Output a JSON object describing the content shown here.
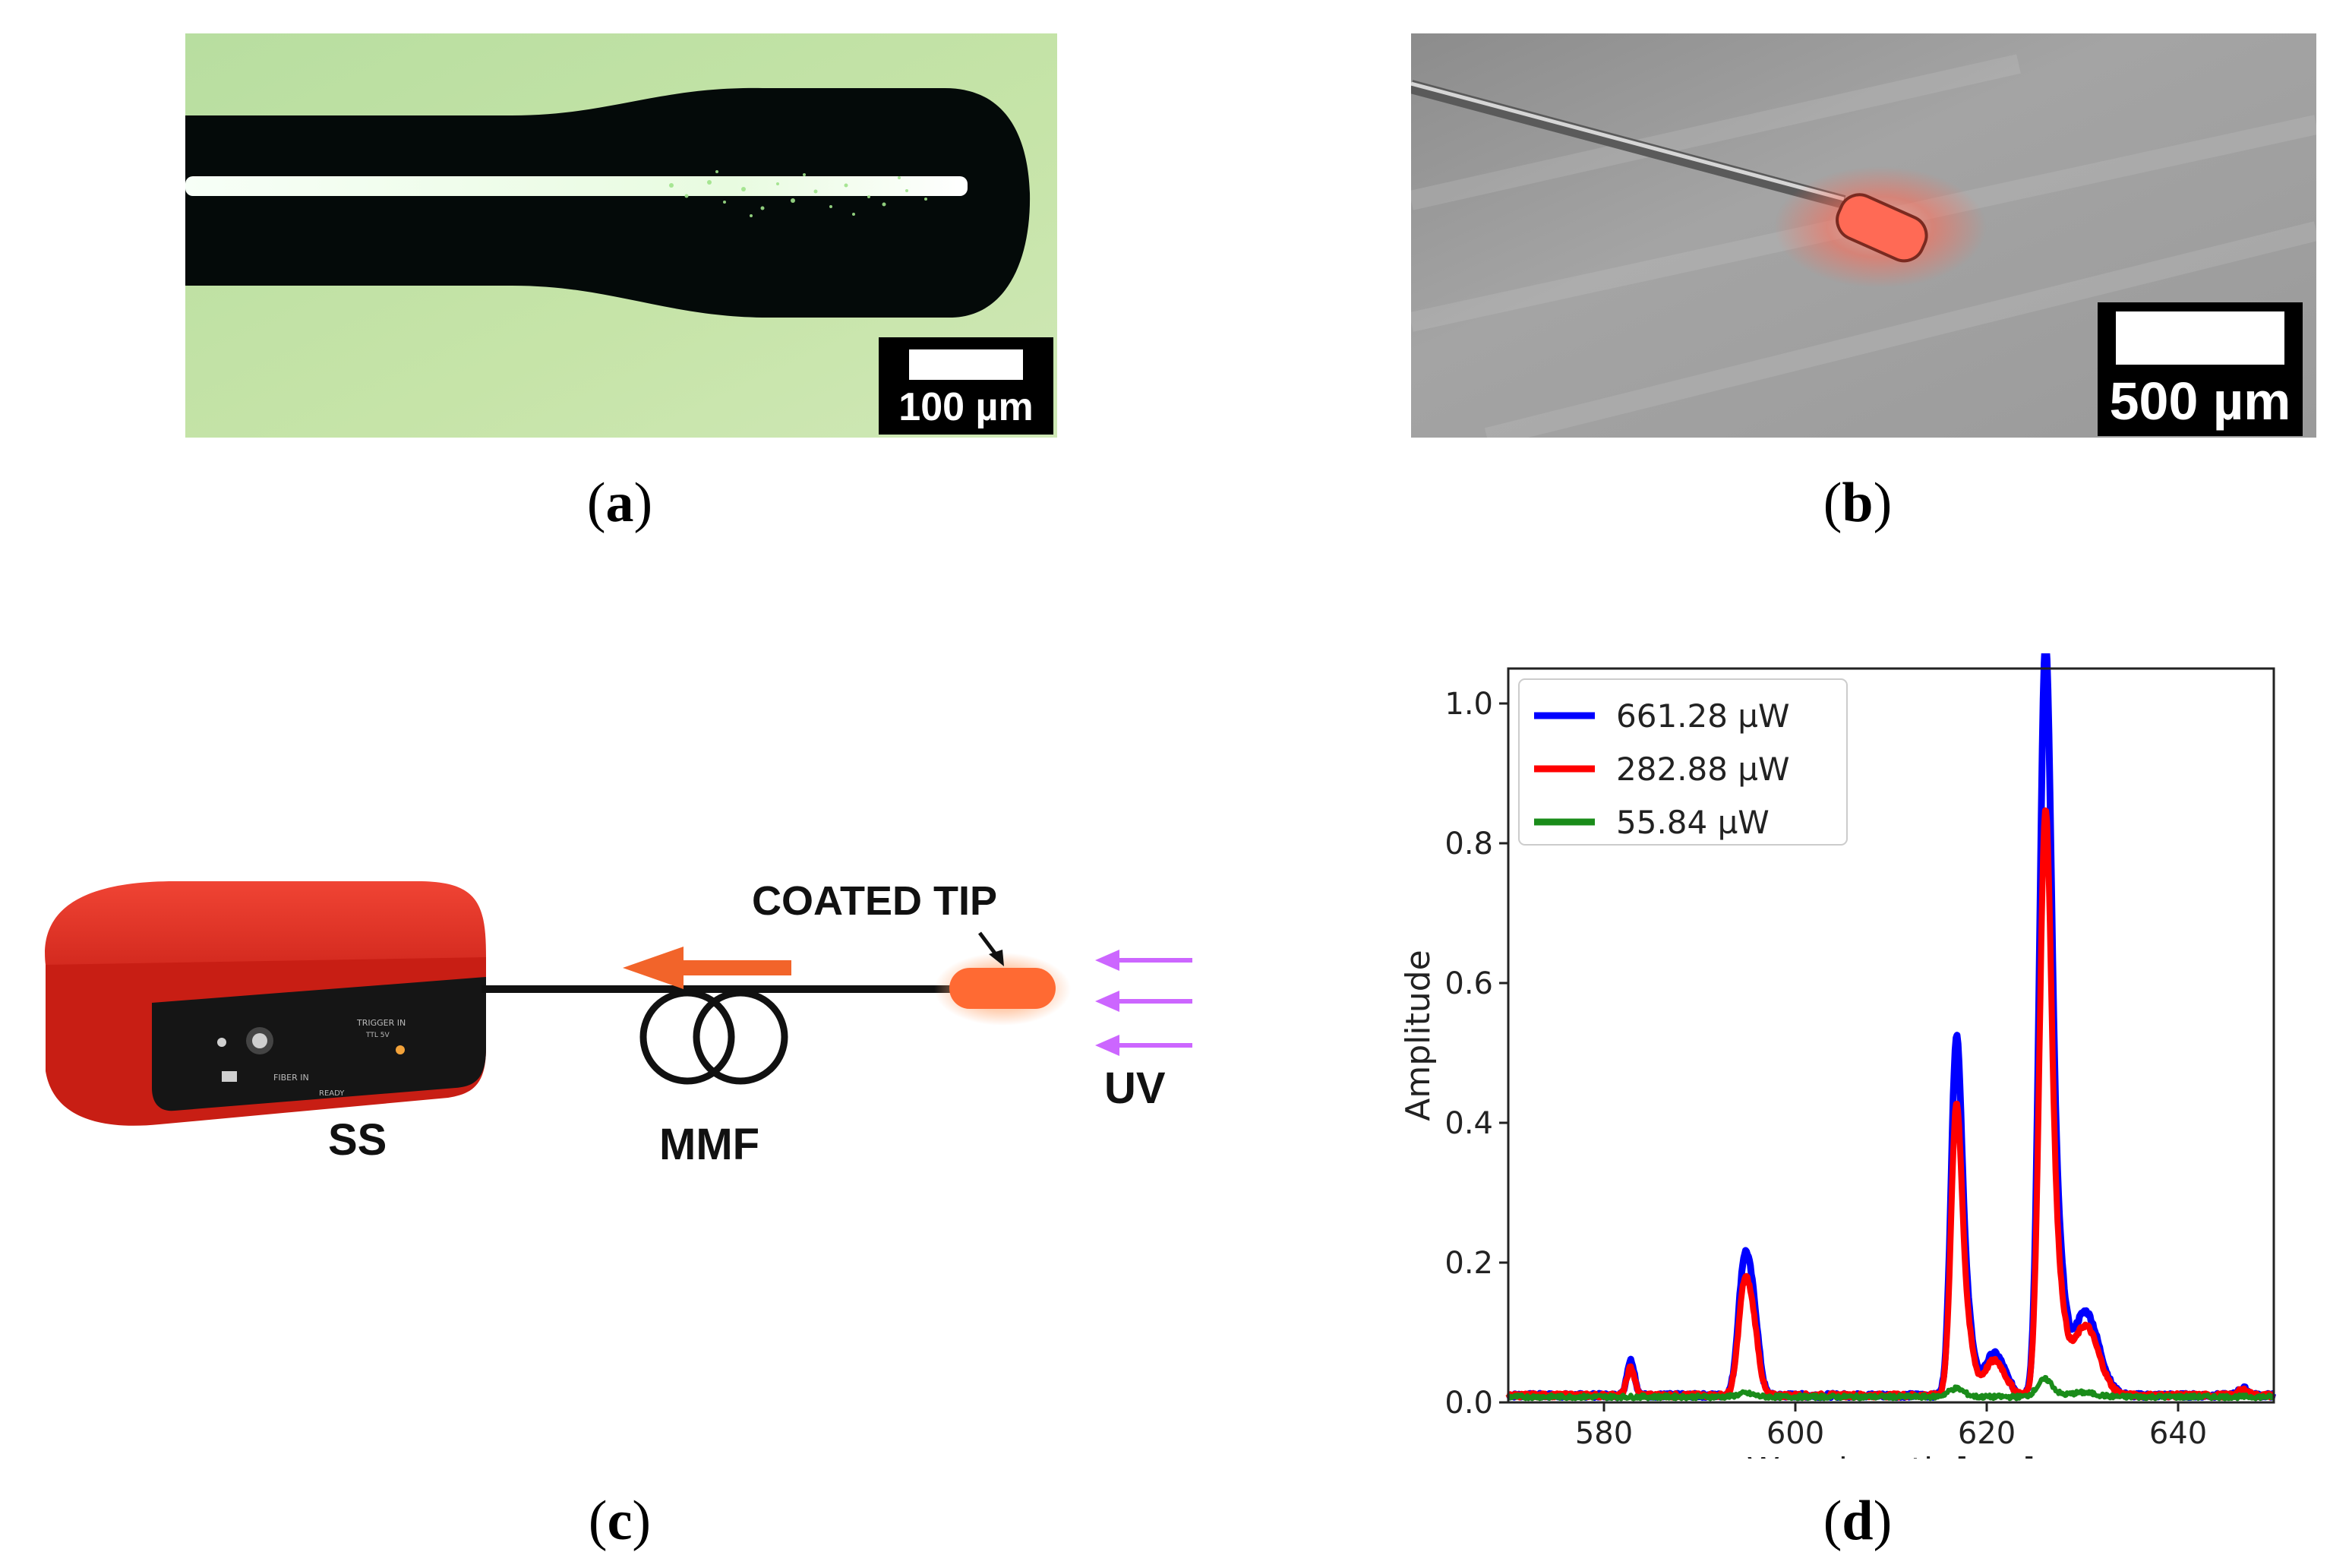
{
  "panels": {
    "a": {
      "caption_open": "(",
      "caption_letter": "a",
      "caption_close": ")",
      "scale_label": "100 µm",
      "colors": {
        "background": "#c5e3a6",
        "fiber": "#050b0a",
        "core": "#f4fff0"
      }
    },
    "b": {
      "caption_open": "(",
      "caption_letter": "b",
      "caption_close": ")",
      "scale_label": "500 µm",
      "colors": {
        "background": "#9a9a9a",
        "tip": "#ff6a55"
      }
    },
    "c": {
      "caption_open": "(",
      "caption_letter": "c",
      "caption_close": ")",
      "labels": {
        "spectrometer": "SS",
        "fiber": "MMF",
        "coated_tip": "COATED TIP",
        "uv": "UV",
        "port_fiber": "FIBER IN",
        "port_trigger": "TRIGGER IN",
        "port_ttl": "TTL 5V",
        "port_ready": "READY"
      },
      "colors": {
        "device": "#d9261c",
        "arrow": "#f2642a",
        "uv_arrows": "#cc66ff",
        "tip": "#ff6a33"
      }
    },
    "d": {
      "caption_open": "(",
      "caption_letter": "d",
      "caption_close": ")"
    }
  },
  "chart_data": {
    "type": "line",
    "title": "",
    "xlabel": "Wavelength [nm]",
    "ylabel": "Amplitude",
    "xlim": [
      570,
      650
    ],
    "ylim": [
      0.0,
      1.05
    ],
    "xticks": [
      580,
      600,
      620,
      640
    ],
    "yticks": [
      0.0,
      0.2,
      0.4,
      0.6,
      0.8,
      1.0
    ],
    "xtick_labels": [
      "580",
      "600",
      "620",
      "640"
    ],
    "ytick_labels": [
      "0.0",
      "0.2",
      "0.4",
      "0.6",
      "0.8",
      "1.0"
    ],
    "legend_position": "top-left",
    "baseline": 0.01,
    "series": [
      {
        "name": "661.28 µW",
        "color": "#0000ff",
        "peaks": [
          {
            "center": 582.8,
            "height": 0.05,
            "width": 0.4
          },
          {
            "center": 594.6,
            "height": 0.17,
            "width": 0.6
          },
          {
            "center": 595.6,
            "height": 0.11,
            "width": 0.6
          },
          {
            "center": 616.8,
            "height": 0.47,
            "width": 0.55
          },
          {
            "center": 617.8,
            "height": 0.12,
            "width": 0.7
          },
          {
            "center": 620.8,
            "height": 0.06,
            "width": 1.1
          },
          {
            "center": 626.1,
            "height": 0.99,
            "width": 0.6
          },
          {
            "center": 627.2,
            "height": 0.22,
            "width": 0.8
          },
          {
            "center": 630.3,
            "height": 0.12,
            "width": 1.4
          },
          {
            "center": 646.8,
            "height": 0.01,
            "width": 0.5
          }
        ]
      },
      {
        "name": "282.88 µW",
        "color": "#ff0000",
        "peaks": [
          {
            "center": 582.8,
            "height": 0.04,
            "width": 0.4
          },
          {
            "center": 594.6,
            "height": 0.14,
            "width": 0.6
          },
          {
            "center": 595.6,
            "height": 0.09,
            "width": 0.6
          },
          {
            "center": 616.8,
            "height": 0.38,
            "width": 0.55
          },
          {
            "center": 617.8,
            "height": 0.1,
            "width": 0.7
          },
          {
            "center": 620.8,
            "height": 0.05,
            "width": 1.1
          },
          {
            "center": 626.1,
            "height": 0.77,
            "width": 0.6
          },
          {
            "center": 627.2,
            "height": 0.17,
            "width": 0.8
          },
          {
            "center": 630.3,
            "height": 0.1,
            "width": 1.4
          },
          {
            "center": 646.8,
            "height": 0.008,
            "width": 0.5
          }
        ]
      },
      {
        "name": "55.84 µW",
        "color": "#1a8c1a",
        "peaks": [
          {
            "center": 594.8,
            "height": 0.005,
            "width": 0.8
          },
          {
            "center": 616.8,
            "height": 0.012,
            "width": 0.8
          },
          {
            "center": 626.1,
            "height": 0.025,
            "width": 0.8
          },
          {
            "center": 630.0,
            "height": 0.006,
            "width": 1.4
          }
        ]
      }
    ]
  }
}
